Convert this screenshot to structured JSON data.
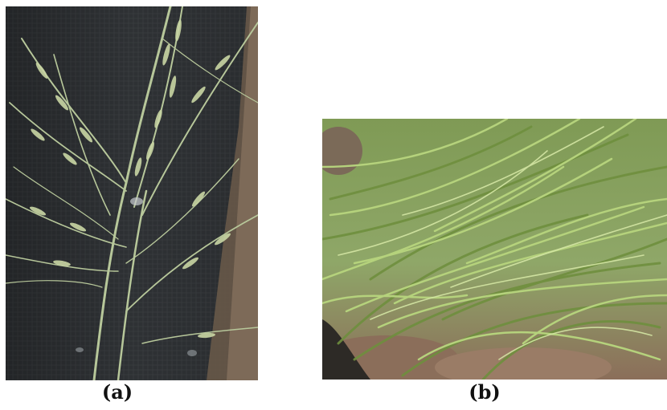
{
  "figure": {
    "panels": [
      {
        "id": "a",
        "label": "(a)"
      },
      {
        "id": "b",
        "label": "(b)"
      }
    ]
  },
  "colors": {
    "panel_a_background": "#2d3033",
    "panel_a_stems": "#b7c79a",
    "panel_a_spikelets": "#c9d6a4",
    "panel_b_soil": "#8b6e5a",
    "panel_b_leaves_light": "#b5d27c",
    "panel_b_leaves_dark": "#6f8f3e"
  }
}
